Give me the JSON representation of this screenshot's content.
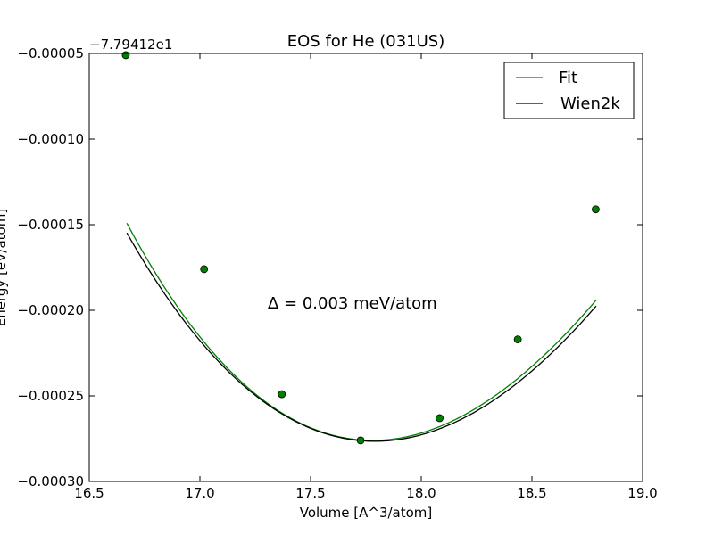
{
  "chart_data": {
    "type": "line",
    "title": "EOS for He (031US)",
    "xlabel": "Volume [A^3/atom]",
    "ylabel": "Energy [eV/atom]",
    "y_offset_label": "−7.79412e1",
    "xlim": [
      16.5,
      19.0
    ],
    "ylim": [
      -0.0003,
      -5e-05
    ],
    "x_ticks": [
      16.5,
      17.0,
      17.5,
      18.0,
      18.5,
      19.0
    ],
    "x_tick_labels": [
      "16.5",
      "17.0",
      "17.5",
      "18.0",
      "18.5",
      "19.0"
    ],
    "y_ticks": [
      -5e-05,
      -0.0001,
      -0.00015,
      -0.0002,
      -0.00025,
      -0.0003
    ],
    "y_tick_labels": [
      "−0.00005",
      "−0.00010",
      "−0.00015",
      "−0.00020",
      "−0.00025",
      "−0.00030"
    ],
    "grid": false,
    "legend_position": "top-right",
    "annotation": "Δ = 0.003 meV/atom",
    "series": [
      {
        "name": "Fit",
        "color": "#008000",
        "style": "line",
        "eos": {
          "v0": 17.78,
          "emin": -0.000276,
          "c2": 9.11e-05,
          "c3": -1.07e-05
        },
        "x_range": [
          16.67,
          18.79
        ]
      },
      {
        "name": "Wien2k",
        "color": "#000000",
        "style": "line",
        "eos": {
          "v0": 17.79,
          "emin": -0.0002765,
          "c2": 8.75e-05,
          "c3": -8.5e-06
        },
        "x_range": [
          16.67,
          18.79
        ]
      }
    ],
    "points": {
      "color": "#008000",
      "x": [
        16.665,
        17.019,
        17.37,
        17.726,
        18.083,
        18.436,
        18.788
      ],
      "y": [
        -5.1e-05,
        -0.000176,
        -0.000249,
        -0.000276,
        -0.000263,
        -0.000217,
        -0.000141
      ]
    }
  }
}
